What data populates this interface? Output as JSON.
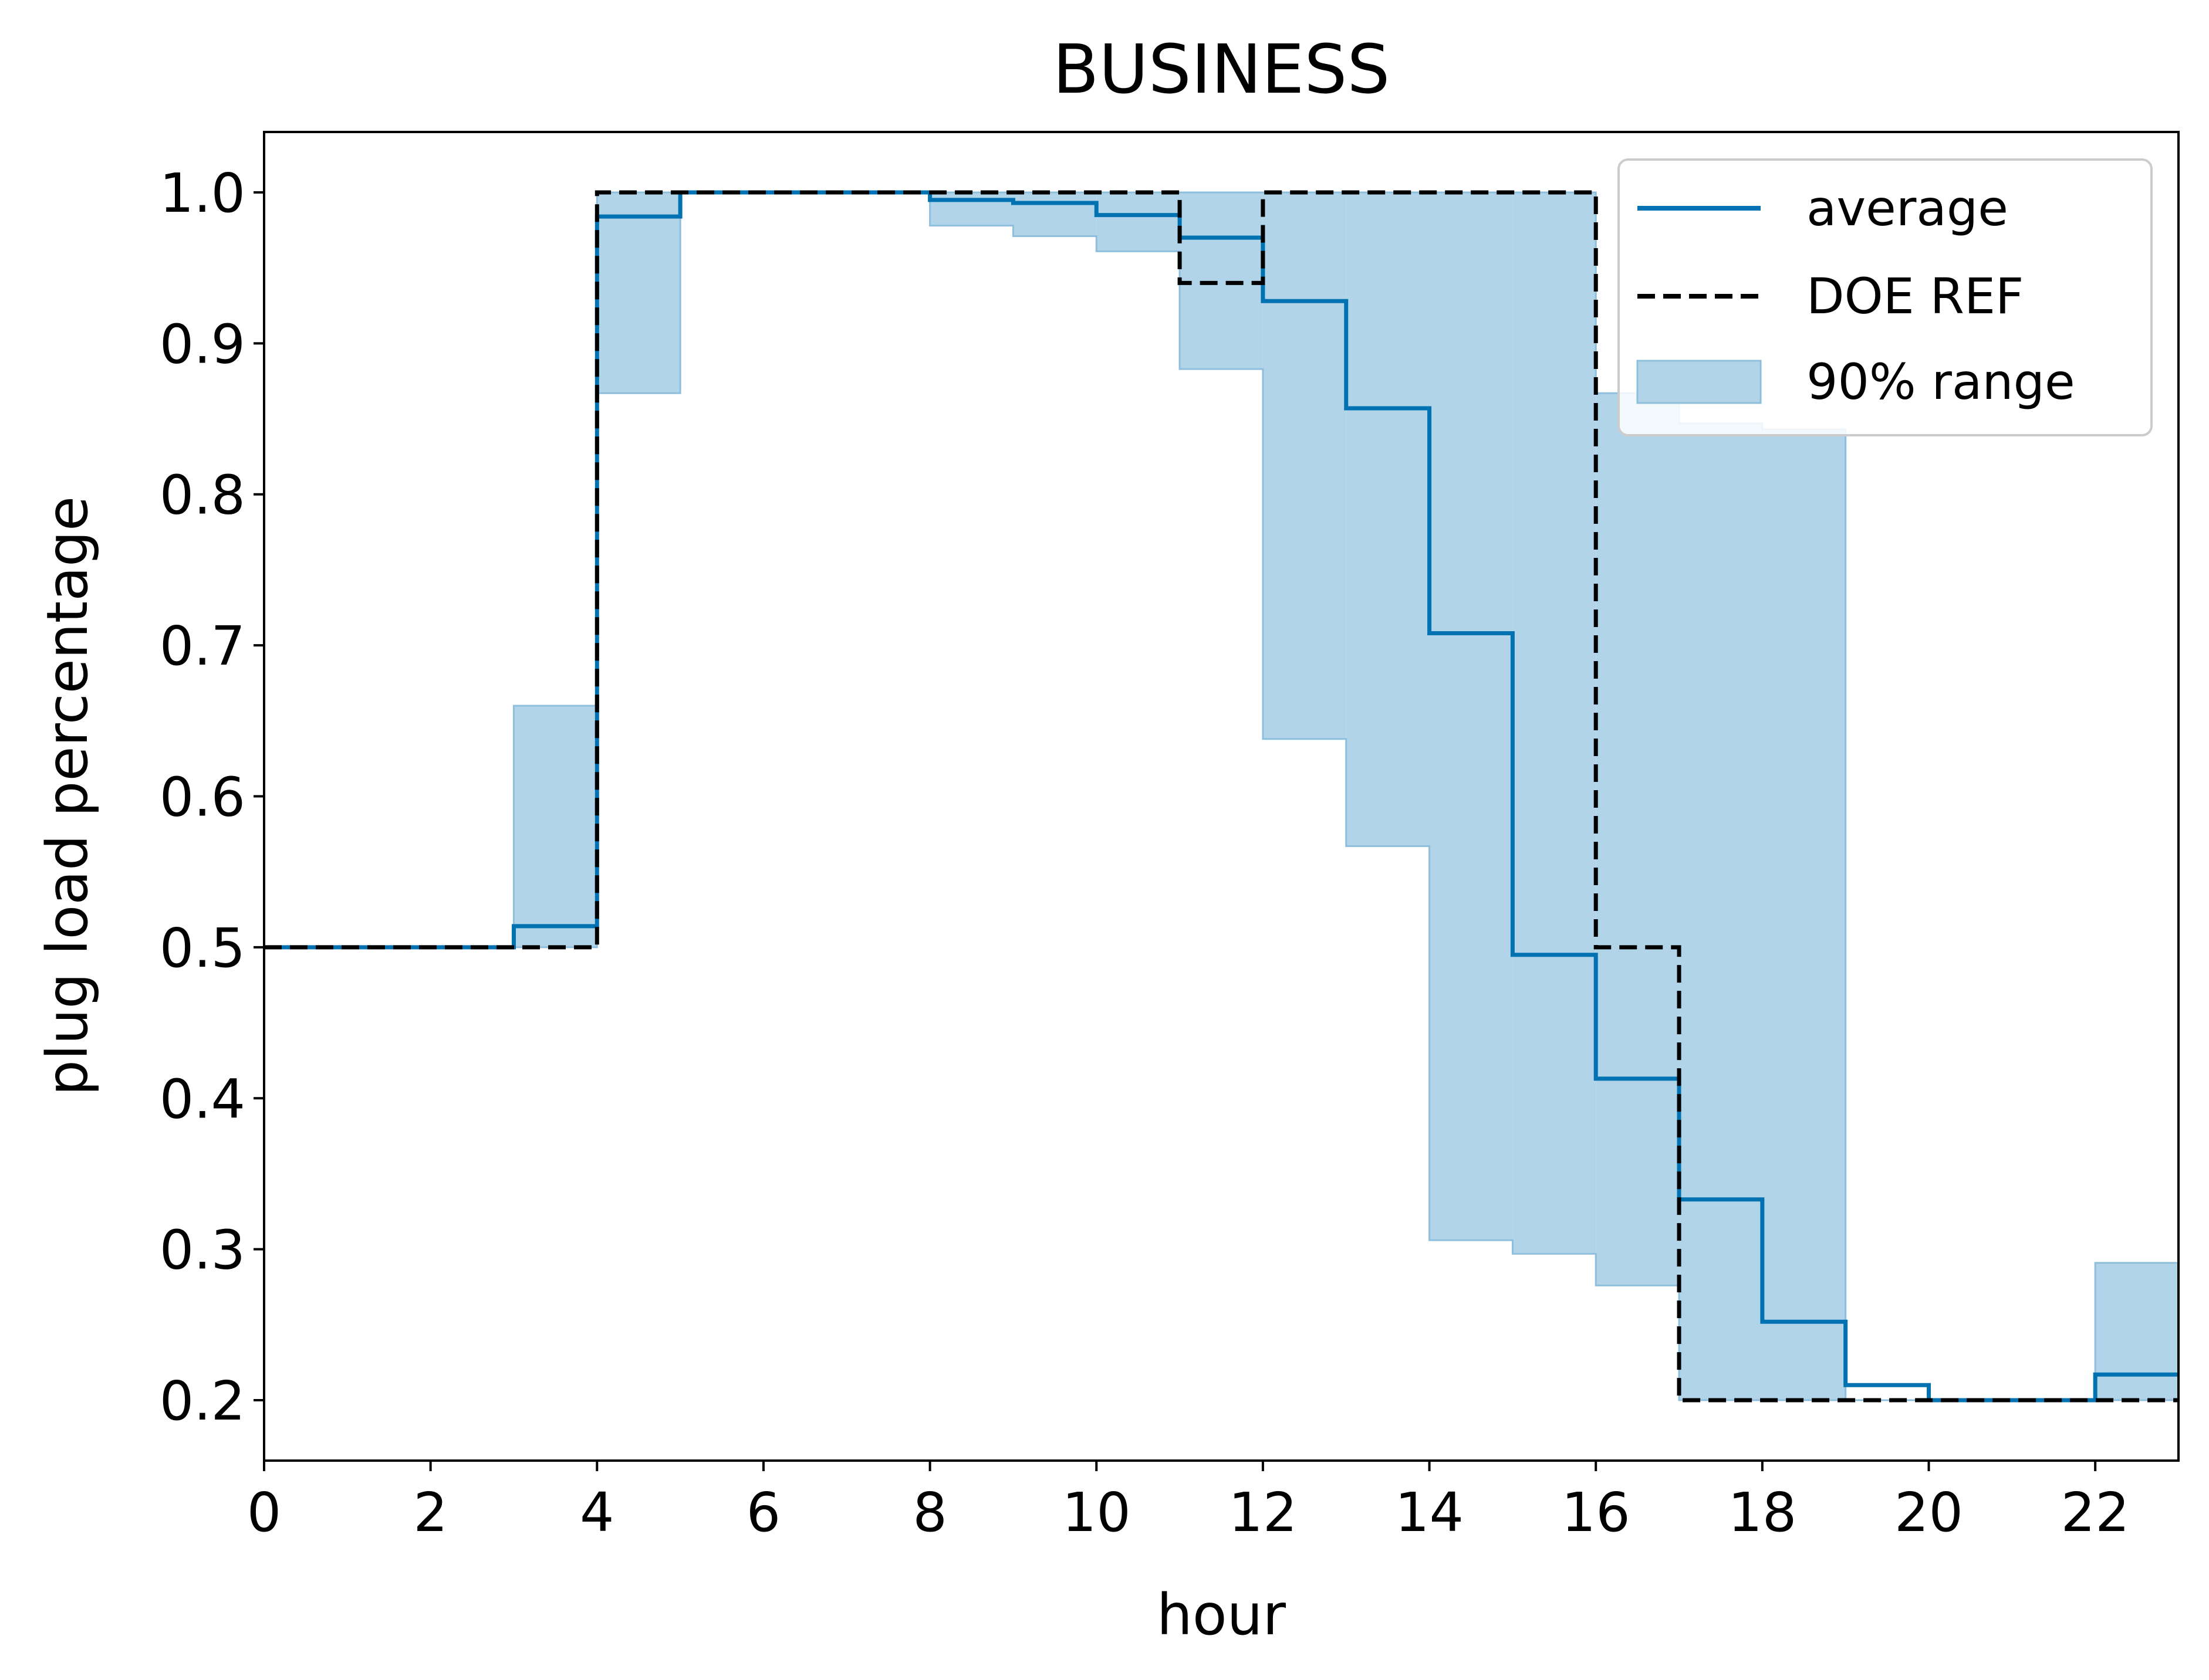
{
  "colors": {
    "average": "#0072b2",
    "doe_ref": "#000000",
    "range_fill": "#b1d4e8",
    "range_edge": "#8ebfdd"
  },
  "chart_data": {
    "type": "line",
    "title": "BUSINESS",
    "xlabel": "hour",
    "ylabel": "plug load percentage",
    "xlim": [
      0,
      23
    ],
    "ylim": [
      0.16,
      1.04
    ],
    "step": "post",
    "grid": false,
    "legend_position": "top-right",
    "x_ticks": [
      0,
      2,
      4,
      6,
      8,
      10,
      12,
      14,
      16,
      18,
      20,
      22
    ],
    "x_tick_labels": [
      "0",
      "2",
      "4",
      "6",
      "8",
      "10",
      "12",
      "14",
      "16",
      "18",
      "20",
      "22"
    ],
    "y_ticks": [
      0.2,
      0.3,
      0.4,
      0.5,
      0.6,
      0.7,
      0.8,
      0.9,
      1.0
    ],
    "y_tick_labels": [
      "0.2",
      "0.3",
      "0.4",
      "0.5",
      "0.6",
      "0.7",
      "0.8",
      "0.9",
      "1.0"
    ],
    "x": [
      0,
      1,
      2,
      3,
      4,
      5,
      6,
      7,
      8,
      9,
      10,
      11,
      12,
      13,
      14,
      15,
      16,
      17,
      18,
      19,
      20,
      21,
      22,
      23
    ],
    "series": [
      {
        "name": "average",
        "values": [
          0.5,
          0.5,
          0.5,
          0.514,
          0.984,
          1.0,
          1.0,
          1.0,
          0.995,
          0.993,
          0.985,
          0.97,
          0.928,
          0.857,
          0.708,
          0.495,
          0.413,
          0.333,
          0.252,
          0.21,
          0.2,
          0.2,
          0.217,
          0.217
        ]
      },
      {
        "name": "DOE REF",
        "values": [
          0.5,
          0.5,
          0.5,
          0.5,
          1.0,
          1.0,
          1.0,
          1.0,
          1.0,
          1.0,
          1.0,
          0.94,
          1.0,
          1.0,
          1.0,
          1.0,
          0.5,
          0.2,
          0.2,
          0.2,
          0.2,
          0.2,
          0.2,
          0.2
        ]
      }
    ],
    "range": {
      "name": "90% range",
      "lower": [
        0.5,
        0.5,
        0.5,
        0.5,
        0.867,
        1.0,
        1.0,
        1.0,
        0.978,
        0.971,
        0.961,
        0.883,
        0.638,
        0.567,
        0.306,
        0.297,
        0.276,
        0.2,
        0.2,
        0.2,
        0.2,
        0.2,
        0.2,
        0.2
      ],
      "upper": [
        0.5,
        0.5,
        0.5,
        0.66,
        1.0,
        1.0,
        1.0,
        1.0,
        1.0,
        1.0,
        1.0,
        1.0,
        1.0,
        1.0,
        1.0,
        1.0,
        0.867,
        0.847,
        0.843,
        0.2,
        0.2,
        0.2,
        0.291,
        0.291
      ]
    }
  }
}
